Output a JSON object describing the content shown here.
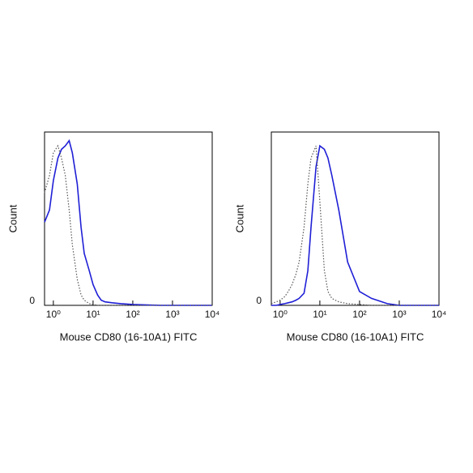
{
  "chart_data": [
    {
      "type": "line",
      "x_label": "Mouse CD80 (16-10A1) FITC",
      "y_label": "Count",
      "log_x": true,
      "xlim": [
        0.6,
        10000
      ],
      "xticks": [
        {
          "value": 1,
          "label": "10⁰"
        },
        {
          "value": 10,
          "label": "10¹"
        },
        {
          "value": 100,
          "label": "10²"
        },
        {
          "value": 1000,
          "label": "10³"
        },
        {
          "value": 10000,
          "label": "10⁴"
        }
      ],
      "ylim": [
        0,
        100
      ],
      "yticks": [
        0
      ],
      "x": [
        0.6,
        0.8,
        1,
        1.3,
        1.6,
        2,
        2.5,
        3,
        4,
        5,
        6,
        8,
        10,
        13,
        16,
        20,
        30,
        50,
        100,
        200,
        500,
        1000,
        10000
      ],
      "series": [
        {
          "color": "#1f1fd6",
          "style": "solid",
          "values": [
            48,
            55,
            72,
            85,
            90,
            92,
            95,
            88,
            70,
            45,
            30,
            20,
            12,
            6,
            3,
            2,
            1.5,
            1,
            0.5,
            0.3,
            0,
            0,
            0
          ]
        },
        {
          "color": "#555555",
          "style": "dotted",
          "values": [
            65,
            75,
            88,
            92,
            85,
            75,
            55,
            35,
            15,
            6,
            3,
            1,
            0.5,
            0,
            0,
            0,
            0,
            0,
            0,
            0,
            0,
            0,
            0
          ]
        }
      ]
    },
    {
      "type": "line",
      "x_label": "Mouse CD80 (16-10A1) FITC",
      "y_label": "Count",
      "log_x": true,
      "xlim": [
        0.6,
        10000
      ],
      "xticks": [
        {
          "value": 1,
          "label": "10⁰"
        },
        {
          "value": 10,
          "label": "10¹"
        },
        {
          "value": 100,
          "label": "10²"
        },
        {
          "value": 1000,
          "label": "10³"
        },
        {
          "value": 10000,
          "label": "10⁴"
        }
      ],
      "ylim": [
        0,
        100
      ],
      "yticks": [
        0
      ],
      "x": [
        0.6,
        0.8,
        1,
        1.3,
        1.6,
        2,
        2.5,
        3,
        4,
        5,
        6,
        8,
        10,
        13,
        16,
        20,
        30,
        50,
        100,
        200,
        500,
        1000,
        10000
      ],
      "series": [
        {
          "color": "#1f1fd6",
          "style": "solid",
          "values": [
            0,
            0,
            0.5,
            1,
            1.5,
            2,
            3,
            4,
            7,
            20,
            45,
            80,
            92,
            90,
            85,
            75,
            55,
            25,
            8,
            4,
            1,
            0,
            0
          ]
        },
        {
          "color": "#555555",
          "style": "dotted",
          "values": [
            1,
            2,
            3,
            5,
            8,
            12,
            18,
            25,
            45,
            70,
            85,
            92,
            60,
            20,
            8,
            4,
            2,
            1,
            0.5,
            0,
            0,
            0,
            0
          ]
        }
      ]
    }
  ]
}
